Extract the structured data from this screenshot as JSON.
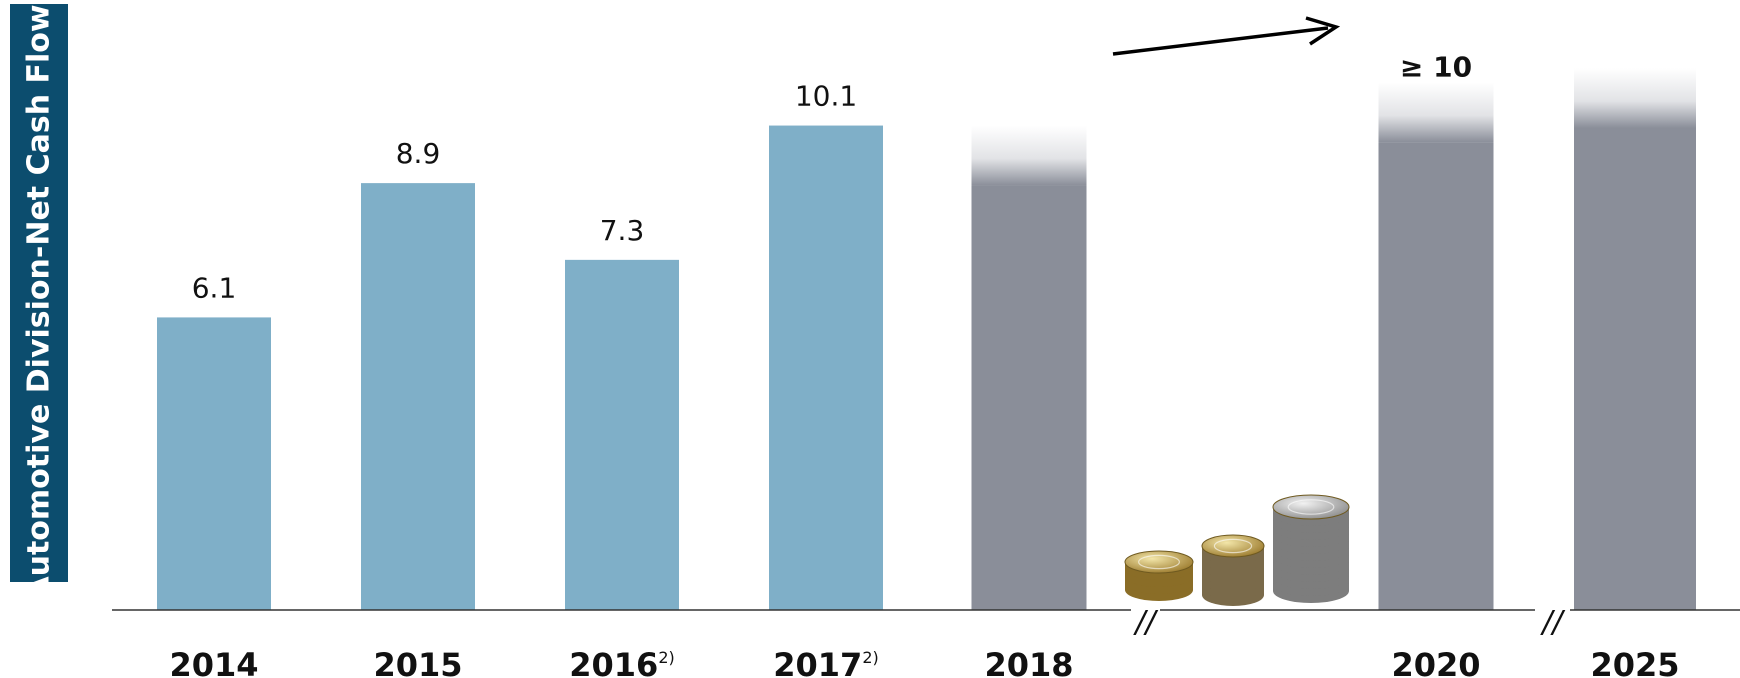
{
  "chart_data": {
    "type": "bar",
    "ylabel": "Automotive Division-Net Cash Flow",
    "bars": [
      {
        "category": "2014",
        "value": 6.1,
        "label": "6.1",
        "kind": "actual"
      },
      {
        "category": "2015",
        "value": 8.9,
        "label": "8.9",
        "kind": "actual"
      },
      {
        "category": "2016",
        "footnote": "2)",
        "value": 7.3,
        "label": "7.3",
        "kind": "actual"
      },
      {
        "category": "2017",
        "footnote": "2)",
        "value": 10.1,
        "label": "10.1",
        "kind": "actual"
      },
      {
        "category": "2018",
        "value": 10.1,
        "label": "",
        "kind": "target"
      },
      {
        "category": "2020",
        "value": 11.0,
        "label": "≥ 10",
        "kind": "target"
      },
      {
        "category": "2025",
        "value": 11.3,
        "label": "",
        "kind": "target"
      }
    ],
    "ylim": [
      0,
      11.3
    ],
    "colors": {
      "actual": "#7fafc8",
      "target": "#8a8e99",
      "ylabel_bg": "#0c4d6e",
      "axis": "#333333"
    },
    "axis_break_symbol": "//",
    "decoration": "coin-stacks"
  }
}
